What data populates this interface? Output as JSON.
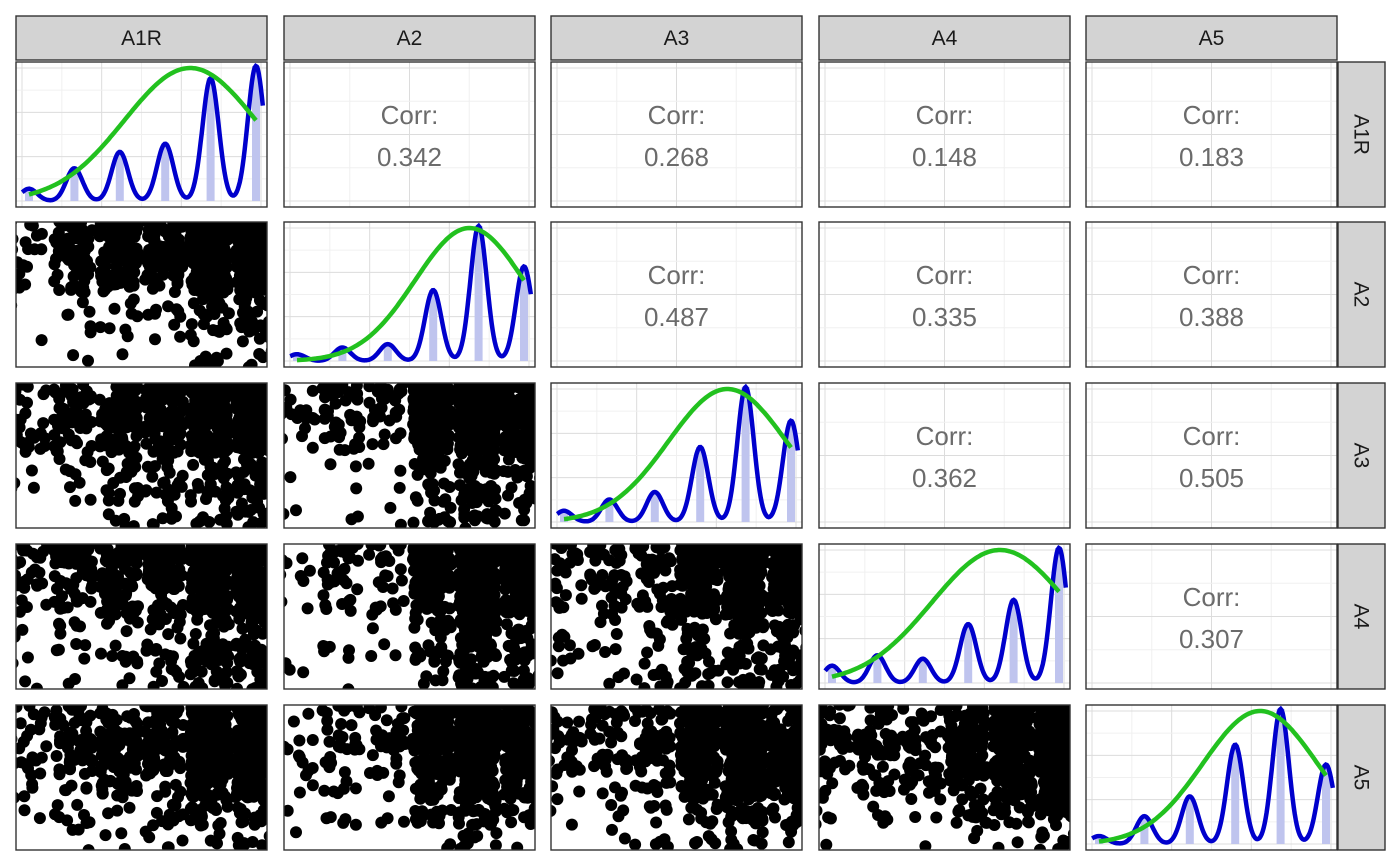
{
  "chart_data": {
    "type": "scatterplot-matrix",
    "variables": [
      "A1R",
      "A2",
      "A3",
      "A4",
      "A5"
    ],
    "corr_label": "Corr:",
    "correlations": [
      {
        "row": "A1R",
        "col": "A2",
        "value": "0.342"
      },
      {
        "row": "A1R",
        "col": "A3",
        "value": "0.268"
      },
      {
        "row": "A1R",
        "col": "A4",
        "value": "0.148"
      },
      {
        "row": "A1R",
        "col": "A5",
        "value": "0.183"
      },
      {
        "row": "A2",
        "col": "A3",
        "value": "0.487"
      },
      {
        "row": "A2",
        "col": "A4",
        "value": "0.335"
      },
      {
        "row": "A2",
        "col": "A5",
        "value": "0.388"
      },
      {
        "row": "A3",
        "col": "A4",
        "value": "0.362"
      },
      {
        "row": "A3",
        "col": "A5",
        "value": "0.505"
      },
      {
        "row": "A4",
        "col": "A5",
        "value": "0.307"
      }
    ],
    "distributions": [
      {
        "variable": "A1R",
        "levels": [
          1,
          2,
          3,
          4,
          5,
          6
        ],
        "proportions": [
          0.03,
          0.08,
          0.12,
          0.14,
          0.3,
          0.33
        ],
        "normal_mean": 4.55,
        "normal_sd": 1.45
      },
      {
        "variable": "A2",
        "levels": [
          1,
          2,
          3,
          4,
          5,
          6
        ],
        "proportions": [
          0.02,
          0.04,
          0.05,
          0.21,
          0.4,
          0.28
        ],
        "normal_mean": 4.8,
        "normal_sd": 1.2
      },
      {
        "variable": "A3",
        "levels": [
          1,
          2,
          3,
          4,
          5,
          6
        ],
        "proportions": [
          0.03,
          0.06,
          0.08,
          0.2,
          0.36,
          0.27
        ],
        "normal_mean": 4.6,
        "normal_sd": 1.3
      },
      {
        "variable": "A4",
        "levels": [
          1,
          2,
          3,
          4,
          5,
          6
        ],
        "proportions": [
          0.05,
          0.08,
          0.07,
          0.17,
          0.24,
          0.39
        ],
        "normal_mean": 4.7,
        "normal_sd": 1.5
      },
      {
        "variable": "A5",
        "levels": [
          1,
          2,
          3,
          4,
          5,
          6
        ],
        "proportions": [
          0.02,
          0.07,
          0.12,
          0.25,
          0.34,
          0.2
        ],
        "normal_mean": 4.55,
        "normal_sd": 1.26
      }
    ],
    "scatter_range": [
      1,
      6
    ],
    "colors": {
      "density": "#0000cc",
      "normal": "#22c11f",
      "bars": "#bfc4ee",
      "points": "#000000",
      "strip": "#d3d3d3"
    },
    "grid": true
  }
}
